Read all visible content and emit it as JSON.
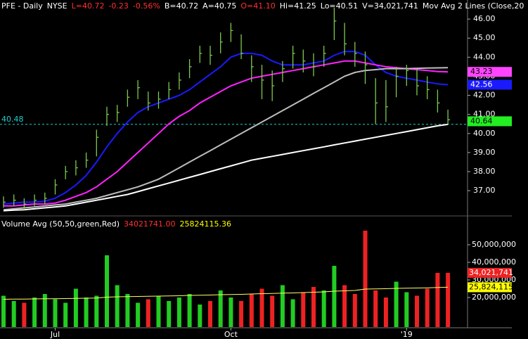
{
  "chart_data": [
    {
      "type": "hlc",
      "header": [
        {
          "text": "PFE - Daily",
          "color": "#ffffff"
        },
        {
          "text": "NYSE",
          "color": "#ffffff"
        },
        {
          "text": "L=40.72",
          "color": "#ff3030"
        },
        {
          "text": "-0.23",
          "color": "#ff3030"
        },
        {
          "text": "-0.56%",
          "color": "#ff3030"
        },
        {
          "text": "B=40.72",
          "color": "#ffffff"
        },
        {
          "text": "A=40.75",
          "color": "#ffffff"
        },
        {
          "text": "O=41.10",
          "color": "#ff3030"
        },
        {
          "text": "Hi=41.25",
          "color": "#ffffff"
        },
        {
          "text": "Lo=40.51",
          "color": "#ffffff"
        },
        {
          "text": "V=34,021,741",
          "color": "#ffffff"
        },
        {
          "text": "Mov Avg 2 Lines (Close,20",
          "color": "#ffffff"
        }
      ],
      "categories": [
        null,
        null,
        null,
        null,
        null,
        "Jul",
        null,
        null,
        null,
        null,
        null,
        null,
        null,
        null,
        null,
        null,
        null,
        null,
        null,
        null,
        null,
        null,
        "Oct",
        null,
        null,
        null,
        null,
        null,
        null,
        null,
        null,
        null,
        null,
        null,
        null,
        null,
        null,
        null,
        null,
        "'19",
        null,
        null,
        null,
        null
      ],
      "high": [
        36.7,
        36.8,
        36.6,
        36.8,
        36.9,
        37.6,
        38.3,
        38.6,
        39.0,
        40.2,
        41.4,
        41.5,
        42.3,
        42.8,
        42.2,
        42.2,
        42.7,
        43.2,
        43.9,
        44.6,
        44.6,
        45.3,
        45.8,
        45.2,
        44.1,
        43.6,
        43.3,
        43.8,
        44.6,
        44.4,
        44.2,
        44.6,
        46.6,
        45.8,
        44.8,
        44.3,
        42.9,
        42.8,
        43.5,
        43.6,
        43.4,
        43.0,
        42.3,
        41.25
      ],
      "low": [
        36.1,
        36.2,
        36.0,
        36.2,
        36.3,
        36.8,
        37.6,
        37.8,
        38.2,
        38.8,
        40.4,
        40.6,
        41.4,
        41.8,
        41.2,
        41.3,
        41.8,
        42.3,
        42.9,
        43.7,
        43.6,
        44.2,
        44.8,
        43.9,
        42.7,
        41.8,
        41.7,
        42.7,
        43.4,
        43.2,
        43.0,
        43.5,
        44.9,
        44.1,
        43.5,
        42.6,
        40.5,
        40.6,
        41.9,
        42.5,
        42.0,
        41.8,
        41.1,
        40.51
      ],
      "close": [
        36.4,
        36.5,
        36.3,
        36.5,
        36.6,
        37.3,
        38.0,
        38.2,
        38.6,
        39.8,
        41.0,
        41.1,
        41.9,
        42.4,
        41.6,
        41.8,
        42.3,
        42.8,
        43.5,
        44.2,
        44.1,
        44.8,
        45.4,
        44.2,
        43.5,
        42.8,
        42.5,
        43.4,
        44.2,
        43.8,
        43.5,
        44.2,
        45.9,
        44.7,
        44.2,
        43.6,
        41.6,
        41.4,
        43.0,
        43.3,
        42.5,
        42.3,
        41.6,
        40.72
      ],
      "bar_color": "#7ec850",
      "series": [
        {
          "color": "#1a1aff",
          "values": [
            36.3,
            36.35,
            36.4,
            36.4,
            36.45,
            36.6,
            36.9,
            37.3,
            37.8,
            38.5,
            39.3,
            40.0,
            40.6,
            41.1,
            41.4,
            41.6,
            41.8,
            42.0,
            42.3,
            42.7,
            43.1,
            43.5,
            44.0,
            44.2,
            44.2,
            44.1,
            43.8,
            43.6,
            43.6,
            43.6,
            43.7,
            43.8,
            44.1,
            44.3,
            44.3,
            44.1,
            43.6,
            43.2,
            43.0,
            42.9,
            42.8,
            42.7,
            42.6,
            42.56
          ]
        },
        {
          "color": "#ff22ff",
          "values": [
            36.2,
            36.2,
            36.25,
            36.3,
            36.3,
            36.35,
            36.5,
            36.7,
            36.9,
            37.2,
            37.6,
            38.0,
            38.5,
            39.0,
            39.5,
            40.0,
            40.5,
            40.9,
            41.2,
            41.6,
            41.9,
            42.2,
            42.5,
            42.7,
            42.9,
            43.0,
            43.1,
            43.2,
            43.3,
            43.4,
            43.5,
            43.6,
            43.7,
            43.8,
            43.8,
            43.7,
            43.6,
            43.5,
            43.45,
            43.4,
            43.35,
            43.3,
            43.25,
            43.23
          ]
        },
        {
          "color": "#bdbdbd",
          "values": [
            36.0,
            36.05,
            36.1,
            36.15,
            36.2,
            36.25,
            36.3,
            36.4,
            36.5,
            36.6,
            36.75,
            36.9,
            37.05,
            37.2,
            37.4,
            37.6,
            37.9,
            38.2,
            38.5,
            38.8,
            39.1,
            39.4,
            39.7,
            40.0,
            40.3,
            40.6,
            40.9,
            41.2,
            41.5,
            41.8,
            42.1,
            42.4,
            42.7,
            43.0,
            43.2,
            43.3,
            43.35,
            43.4,
            43.4,
            43.4,
            43.42,
            43.43,
            43.44,
            43.45
          ]
        },
        {
          "color": "#ffffff",
          "values": [
            35.95,
            35.98,
            36.0,
            36.05,
            36.1,
            36.15,
            36.2,
            36.3,
            36.4,
            36.5,
            36.6,
            36.7,
            36.8,
            36.95,
            37.1,
            37.25,
            37.4,
            37.55,
            37.7,
            37.85,
            38.0,
            38.15,
            38.3,
            38.45,
            38.6,
            38.7,
            38.8,
            38.9,
            39.0,
            39.1,
            39.2,
            39.3,
            39.4,
            39.5,
            39.6,
            39.7,
            39.8,
            39.9,
            40.0,
            40.1,
            40.2,
            40.3,
            40.4,
            40.48
          ]
        }
      ],
      "last_labels": [
        {
          "value": 43.23,
          "color": "#ff44ff",
          "text_color": "#000000"
        },
        {
          "value": 42.56,
          "color": "#1a1aff",
          "text_color": "#ffffff"
        },
        {
          "value": 40.64,
          "color": "#22ee22",
          "text_color": "#000000"
        }
      ],
      "hline": {
        "value": 40.48,
        "color": "#22cccc"
      },
      "ylim": [
        35.75,
        47.0
      ],
      "yticks": [
        {
          "value": 37,
          "label": "37.00"
        },
        {
          "value": 38,
          "label": "38.00"
        },
        {
          "value": 39,
          "label": "39.00"
        },
        {
          "value": 40,
          "label": "40.00"
        },
        {
          "value": 41,
          "label": "41.00"
        },
        {
          "value": 42,
          "label": "42.00"
        },
        {
          "value": 43,
          "label": "43.00"
        },
        {
          "value": 44,
          "label": "44.00"
        },
        {
          "value": 45,
          "label": "45.00"
        },
        {
          "value": 46,
          "label": "46.00"
        }
      ]
    },
    {
      "type": "bar",
      "header": [
        {
          "text": "Volume Avg (50,50,green,Red)",
          "color": "#ffffff"
        },
        {
          "text": "34021741.00",
          "color": "#ff3030"
        },
        {
          "text": "25824115.36",
          "color": "#ffff00"
        }
      ],
      "values": [
        21000000,
        18000000,
        17000000,
        20000000,
        22000000,
        19000000,
        17000000,
        25000000,
        20000000,
        21000000,
        44000000,
        27000000,
        22000000,
        17000000,
        19000000,
        21000000,
        18000000,
        20000000,
        22000000,
        16000000,
        18000000,
        24000000,
        20000000,
        18000000,
        22000000,
        25000000,
        21000000,
        27000000,
        19000000,
        23000000,
        26000000,
        24000000,
        38000000,
        27000000,
        22000000,
        58000000,
        24000000,
        20000000,
        29000000,
        23000000,
        21000000,
        25000000,
        34000000,
        34021741
      ],
      "up_color": "#22cc22",
      "down_color": "#ee2222",
      "avg": {
        "color": "#ffff66",
        "values": [
          19000000,
          19100000,
          19100000,
          19200000,
          19300000,
          19300000,
          19400000,
          19500000,
          19600000,
          19700000,
          20200000,
          20400000,
          20500000,
          20600000,
          20700000,
          20800000,
          20900000,
          21000000,
          21200000,
          21300000,
          21400000,
          21600000,
          21700000,
          21800000,
          22000000,
          22200000,
          22300000,
          22500000,
          22600000,
          22800000,
          23000000,
          23200000,
          23600000,
          23800000,
          24000000,
          24800000,
          24900000,
          25000000,
          25200000,
          25300000,
          25400000,
          25500000,
          25700000,
          25824115
        ]
      },
      "last_labels": [
        {
          "value": 34021741,
          "label": "34,021,741",
          "color": "#ee2222",
          "text_color": "#ffffff"
        },
        {
          "value": 25824115,
          "label": "25,824,115",
          "color": "#ffff00",
          "text_color": "#000000"
        }
      ],
      "ylim": [
        3200000,
        65200000
      ],
      "yticks": [
        {
          "value": 20000000,
          "label": "20,000,000"
        },
        {
          "value": 30000000,
          "label": "30,000,000"
        },
        {
          "value": 40000000,
          "label": "40,000,000"
        },
        {
          "value": 50000000,
          "label": "50,000,000"
        }
      ]
    }
  ]
}
